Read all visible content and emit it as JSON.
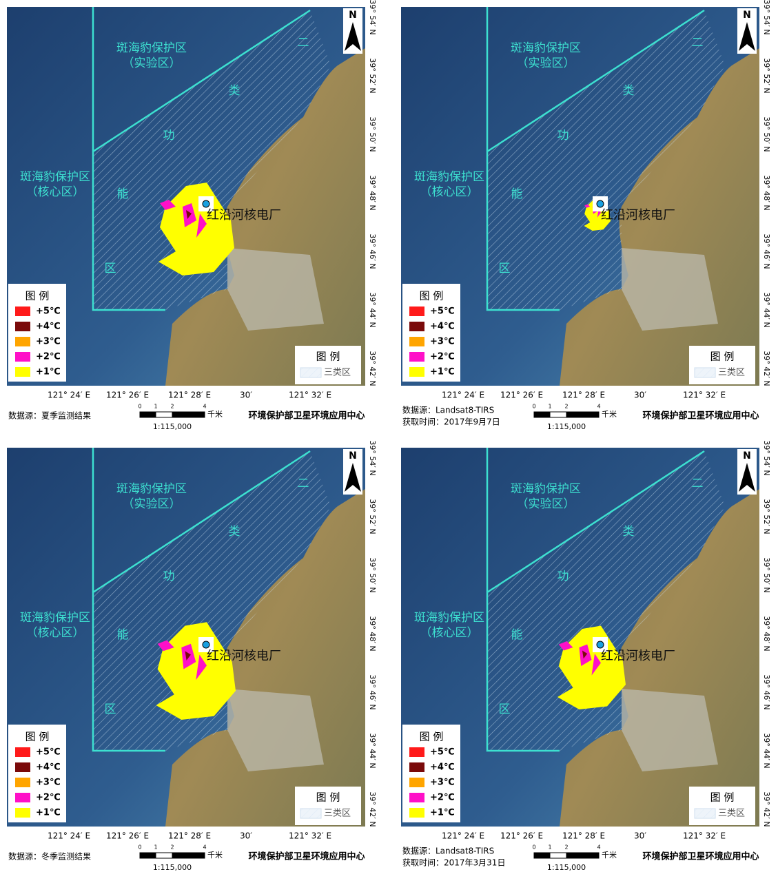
{
  "common": {
    "reserve_experimental": [
      "斑海豹保护区",
      "（实验区）"
    ],
    "reserve_core": [
      "斑海豹保护区",
      "（核心区）"
    ],
    "zone_chars": [
      "二",
      "类",
      "功",
      "能",
      "区"
    ],
    "plant": "红沿河核电厂",
    "north": "N",
    "latitudes": [
      "39° 54′ N",
      "39° 52′ N",
      "39° 50′ N",
      "39° 48′ N",
      "39° 46′ N",
      "39° 44′ N",
      "39° 42′ N"
    ],
    "longitudes": [
      "121° 24′ E",
      "121° 26′ E",
      "121° 28′ E",
      "30′",
      "121° 32′ E"
    ],
    "legend": {
      "title": "图 例",
      "items": [
        {
          "label": "+5℃",
          "color": "#ff1a1a"
        },
        {
          "label": "+4℃",
          "color": "#7a0a0a"
        },
        {
          "label": "+3℃",
          "color": "#ffa500"
        },
        {
          "label": "+2℃",
          "color": "#ff10c8"
        },
        {
          "label": "+1℃",
          "color": "#ffff00"
        }
      ]
    },
    "legend2": {
      "title": "图 例",
      "item": "三类区"
    },
    "scale": {
      "ticks": [
        "0",
        "1",
        "2",
        "4"
      ],
      "unit": "千米",
      "ratio": "1:115,000"
    },
    "agency": "环境保护部卫星环境应用中心"
  },
  "panels": [
    {
      "source": "数据源：夏季监测结果"
    },
    {
      "source": "数据源：Landsat8-TIRS",
      "time": "获取时间：2017年9月7日"
    },
    {
      "source": "数据源：冬季监测结果"
    },
    {
      "source": "数据源：Landsat8-TIRS",
      "time": "获取时间：2017年3月31日"
    }
  ]
}
